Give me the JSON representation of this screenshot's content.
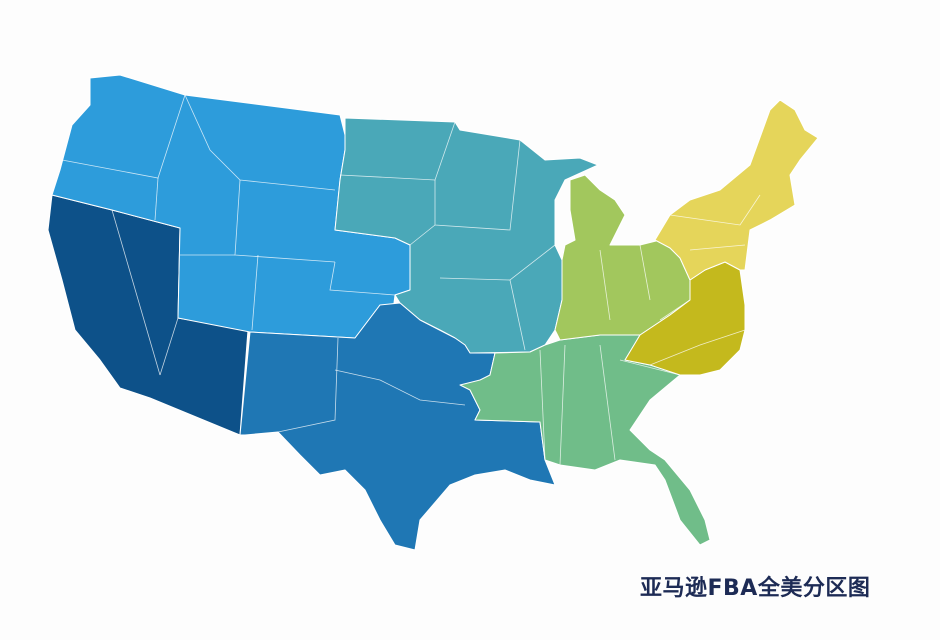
{
  "title": "亚马逊FBA全美分区图",
  "regions": [
    {
      "id": "west",
      "color": "#0d5189"
    },
    {
      "id": "northwest",
      "color": "#2d9cdb"
    },
    {
      "id": "midwest",
      "color": "#4aa8b8"
    },
    {
      "id": "south-central",
      "color": "#1f77b4"
    },
    {
      "id": "southeast",
      "color": "#70bd89"
    },
    {
      "id": "great-lakes",
      "color": "#a2c75d"
    },
    {
      "id": "mid-atlantic",
      "color": "#c4b91d"
    },
    {
      "id": "northeast",
      "color": "#e5d55a"
    }
  ]
}
